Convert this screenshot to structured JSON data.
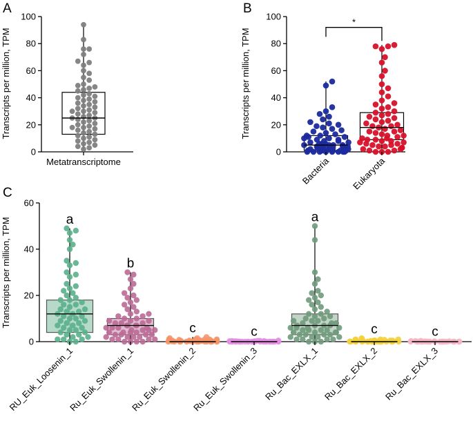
{
  "chart_data": [
    {
      "panel": "A",
      "type": "box-scatter",
      "ylabel": "Transcripts per million, TPM",
      "ylim": [
        0,
        100
      ],
      "yticks": [
        0,
        20,
        40,
        60,
        80,
        100
      ],
      "categories": [
        "Metatranscriptome"
      ],
      "series": [
        {
          "name": "Metatranscriptome",
          "color": "#808080",
          "fill": "none",
          "box": {
            "min": 2,
            "q1": 13,
            "median": 25,
            "q3": 44,
            "max": 94
          },
          "values": [
            94,
            83,
            76,
            76,
            72,
            67,
            66,
            64,
            60,
            58,
            55,
            53,
            50,
            49,
            48,
            47,
            46,
            45,
            43,
            42,
            41,
            40,
            39,
            38,
            37,
            36,
            35,
            34,
            33,
            32,
            31,
            30,
            30,
            29,
            28,
            27,
            26,
            25,
            25,
            24,
            23,
            22,
            21,
            20,
            19,
            18,
            18,
            17,
            16,
            15,
            14,
            13,
            12,
            11,
            10,
            9,
            8,
            7,
            6,
            5,
            4,
            3,
            2
          ]
        }
      ]
    },
    {
      "panel": "B",
      "type": "box-scatter",
      "ylabel": "Transcripts per million, TPM",
      "ylim": [
        0,
        100
      ],
      "yticks": [
        0,
        20,
        40,
        60,
        80,
        100
      ],
      "categories": [
        "Bacteria",
        "Eukaryota"
      ],
      "significance": "*",
      "series": [
        {
          "name": "Bacteria",
          "color": "#1b2a9e",
          "fill": "none",
          "box": {
            "min": 0,
            "q1": 1,
            "median": 5,
            "q3": 12,
            "max": 52
          },
          "values": [
            52,
            49,
            33,
            30,
            28,
            26,
            24,
            22,
            21,
            20,
            19,
            18,
            17,
            16,
            15,
            14,
            13,
            12,
            12,
            11,
            11,
            10,
            10,
            9,
            9,
            8,
            8,
            7,
            7,
            6,
            6,
            6,
            5,
            5,
            5,
            5,
            4,
            4,
            4,
            4,
            3,
            3,
            3,
            3,
            2,
            2,
            2,
            2,
            2,
            1,
            1,
            1,
            1,
            1,
            1,
            0,
            0,
            0,
            0,
            0,
            0,
            0,
            0
          ]
        },
        {
          "name": "Eukaryota",
          "color": "#d7112a",
          "fill": "none",
          "box": {
            "min": 0,
            "q1": 9,
            "median": 18,
            "q3": 29,
            "max": 79
          },
          "values": [
            79,
            78,
            78,
            76,
            70,
            66,
            60,
            56,
            50,
            47,
            44,
            41,
            38,
            36,
            35,
            33,
            32,
            30,
            29,
            28,
            27,
            26,
            25,
            24,
            23,
            22,
            21,
            20,
            19,
            19,
            18,
            17,
            16,
            15,
            15,
            14,
            13,
            12,
            12,
            11,
            10,
            10,
            9,
            9,
            8,
            8,
            7,
            7,
            6,
            6,
            5,
            5,
            4,
            4,
            3,
            3,
            2,
            2,
            1,
            1,
            0,
            0,
            0
          ]
        }
      ]
    },
    {
      "panel": "C",
      "type": "box-scatter",
      "ylabel": "Transcripts per million, TPM",
      "ylim": [
        0,
        60
      ],
      "yticks": [
        0,
        20,
        40,
        60
      ],
      "categories": [
        "RU_Euk_Loosenin_1",
        "Ru_Euk_Swollenin_1",
        "Ru_Euk_Swollenin_2",
        "Ru_Euk_Swollenin_3",
        "Ru_Bac_EXLX_1",
        "Ru_Bac_EXLX_2",
        "Ru_Bac_EXLX_3"
      ],
      "letters": [
        "a",
        "b",
        "c",
        "c",
        "a",
        "c",
        "c"
      ],
      "series": [
        {
          "name": "RU_Euk_Loosenin_1",
          "color": "#5aaf8a",
          "fill": "#a9d4bf",
          "box": {
            "min": 0,
            "q1": 4,
            "median": 12,
            "q3": 18,
            "max": 49
          },
          "values": [
            49,
            48,
            47,
            44,
            42,
            40,
            35,
            34,
            33,
            30,
            29,
            28,
            25,
            24,
            23,
            22,
            21,
            20,
            19,
            18,
            18,
            17,
            16,
            16,
            15,
            14,
            14,
            13,
            13,
            12,
            12,
            11,
            11,
            10,
            10,
            9,
            9,
            8,
            8,
            7,
            7,
            6,
            6,
            5,
            5,
            4,
            4,
            3,
            3,
            2,
            2,
            1,
            1,
            1,
            0,
            0
          ]
        },
        {
          "name": "Ru_Euk_Swollenin_1",
          "color": "#bb6a96",
          "fill": "#dcb0c8",
          "box": {
            "min": 0,
            "q1": 3,
            "median": 7,
            "q3": 10,
            "max": 30
          },
          "values": [
            30,
            29,
            27,
            25,
            23,
            21,
            20,
            19,
            18,
            17,
            16,
            15,
            14,
            13,
            12,
            12,
            11,
            11,
            10,
            10,
            9,
            9,
            9,
            8,
            8,
            8,
            7,
            7,
            7,
            7,
            6,
            6,
            6,
            6,
            5,
            5,
            5,
            5,
            4,
            4,
            4,
            4,
            3,
            3,
            3,
            3,
            2,
            2,
            2,
            2,
            1,
            1,
            1,
            1,
            0,
            0,
            0,
            0
          ]
        },
        {
          "name": "Ru_Euk_Swollenin_2",
          "color": "#f5956b",
          "fill": "#f5956b",
          "box": {
            "min": 0,
            "q1": 0,
            "median": 0,
            "q3": 0.5,
            "max": 2
          },
          "values": [
            2,
            1.5,
            1.5,
            1,
            1,
            1,
            1,
            1,
            0.8,
            0.8,
            0.7,
            0.6,
            0.5,
            0.5,
            0.5,
            0.4,
            0.4,
            0.3,
            0.3,
            0.3,
            0.2,
            0.2,
            0.2,
            0.1,
            0.1,
            0.1,
            0,
            0,
            0,
            0,
            0,
            0,
            0,
            0,
            0,
            0,
            0,
            0,
            0,
            0
          ]
        },
        {
          "name": "Ru_Euk_Swollenin_3",
          "color": "#e38fe3",
          "fill": "#e38fe3",
          "box": {
            "min": 0,
            "q1": 0,
            "median": 0,
            "q3": 0.2,
            "max": 0.5
          },
          "values": [
            0.5,
            0.4,
            0.4,
            0.3,
            0.3,
            0.2,
            0.2,
            0.2,
            0.1,
            0.1,
            0.1,
            0.1,
            0,
            0,
            0,
            0,
            0,
            0,
            0,
            0,
            0,
            0,
            0,
            0,
            0,
            0,
            0,
            0,
            0,
            0,
            0,
            0,
            0,
            0,
            0,
            0
          ]
        },
        {
          "name": "Ru_Bac_EXLX_1",
          "color": "#6f9a7b",
          "fill": "#b6ccbd",
          "box": {
            "min": 0,
            "q1": 3,
            "median": 7,
            "q3": 12,
            "max": 50
          },
          "values": [
            50,
            44,
            30,
            27,
            25,
            22,
            21,
            20,
            19,
            18,
            17,
            16,
            15,
            14,
            13,
            12,
            12,
            11,
            11,
            10,
            10,
            9,
            9,
            9,
            8,
            8,
            8,
            7,
            7,
            7,
            7,
            6,
            6,
            6,
            6,
            5,
            5,
            5,
            5,
            4,
            4,
            4,
            4,
            3,
            3,
            3,
            3,
            2,
            2,
            2,
            2,
            1,
            1,
            1,
            1,
            0,
            0,
            0
          ]
        },
        {
          "name": "Ru_Bac_EXLX_2",
          "color": "#f3d03d",
          "fill": "#f3d03d",
          "box": {
            "min": 0,
            "q1": 0,
            "median": 0,
            "q3": 0.5,
            "max": 1.5
          },
          "values": [
            1.5,
            1.2,
            1,
            1,
            1,
            0.8,
            0.8,
            0.6,
            0.6,
            0.5,
            0.5,
            0.4,
            0.4,
            0.3,
            0.3,
            0.2,
            0.2,
            0.1,
            0.1,
            0.1,
            0,
            0,
            0,
            0,
            0,
            0,
            0,
            0,
            0,
            0,
            0,
            0,
            0,
            0,
            0,
            0
          ]
        },
        {
          "name": "Ru_Bac_EXLX_3",
          "color": "#f5b6c6",
          "fill": "#f5b6c6",
          "box": {
            "min": 0,
            "q1": 0,
            "median": 0,
            "q3": 0.2,
            "max": 0.4
          },
          "values": [
            0.4,
            0.3,
            0.3,
            0.2,
            0.2,
            0.1,
            0.1,
            0.1,
            0,
            0,
            0,
            0,
            0,
            0,
            0,
            0,
            0,
            0,
            0,
            0,
            0,
            0,
            0,
            0,
            0,
            0,
            0,
            0,
            0,
            0,
            0,
            0
          ]
        }
      ]
    }
  ]
}
